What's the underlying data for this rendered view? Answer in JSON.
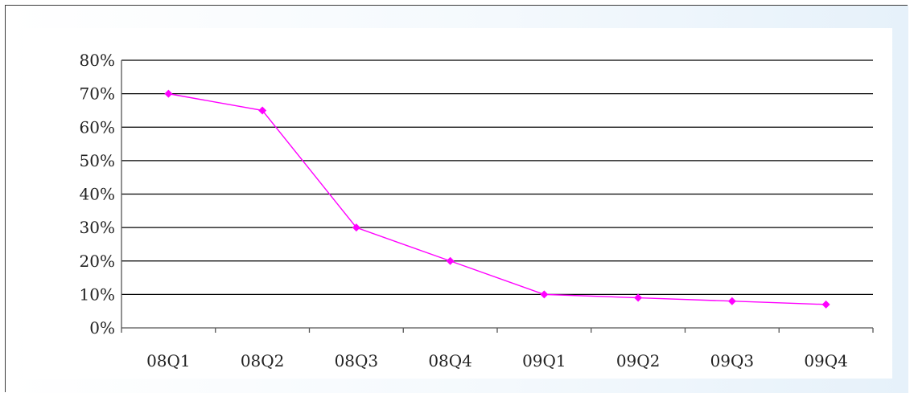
{
  "colors": {
    "series": "#ff00ff",
    "grid": "#000000",
    "frame": "#3a3a3a",
    "background_tint": "#e9f3fb"
  },
  "chart_data": {
    "type": "line",
    "title": "",
    "xlabel": "",
    "ylabel": "",
    "categories": [
      "08Q1",
      "08Q2",
      "08Q3",
      "08Q4",
      "09Q1",
      "09Q2",
      "09Q3",
      "09Q4"
    ],
    "series": [
      {
        "values": [
          70,
          65,
          30,
          20,
          10,
          9,
          8,
          7
        ]
      }
    ],
    "ylim": [
      0,
      80
    ],
    "y_ticks": [
      "0%",
      "10%",
      "20%",
      "30%",
      "40%",
      "50%",
      "60%",
      "70%",
      "80%"
    ],
    "grid": true,
    "legend": "none"
  }
}
